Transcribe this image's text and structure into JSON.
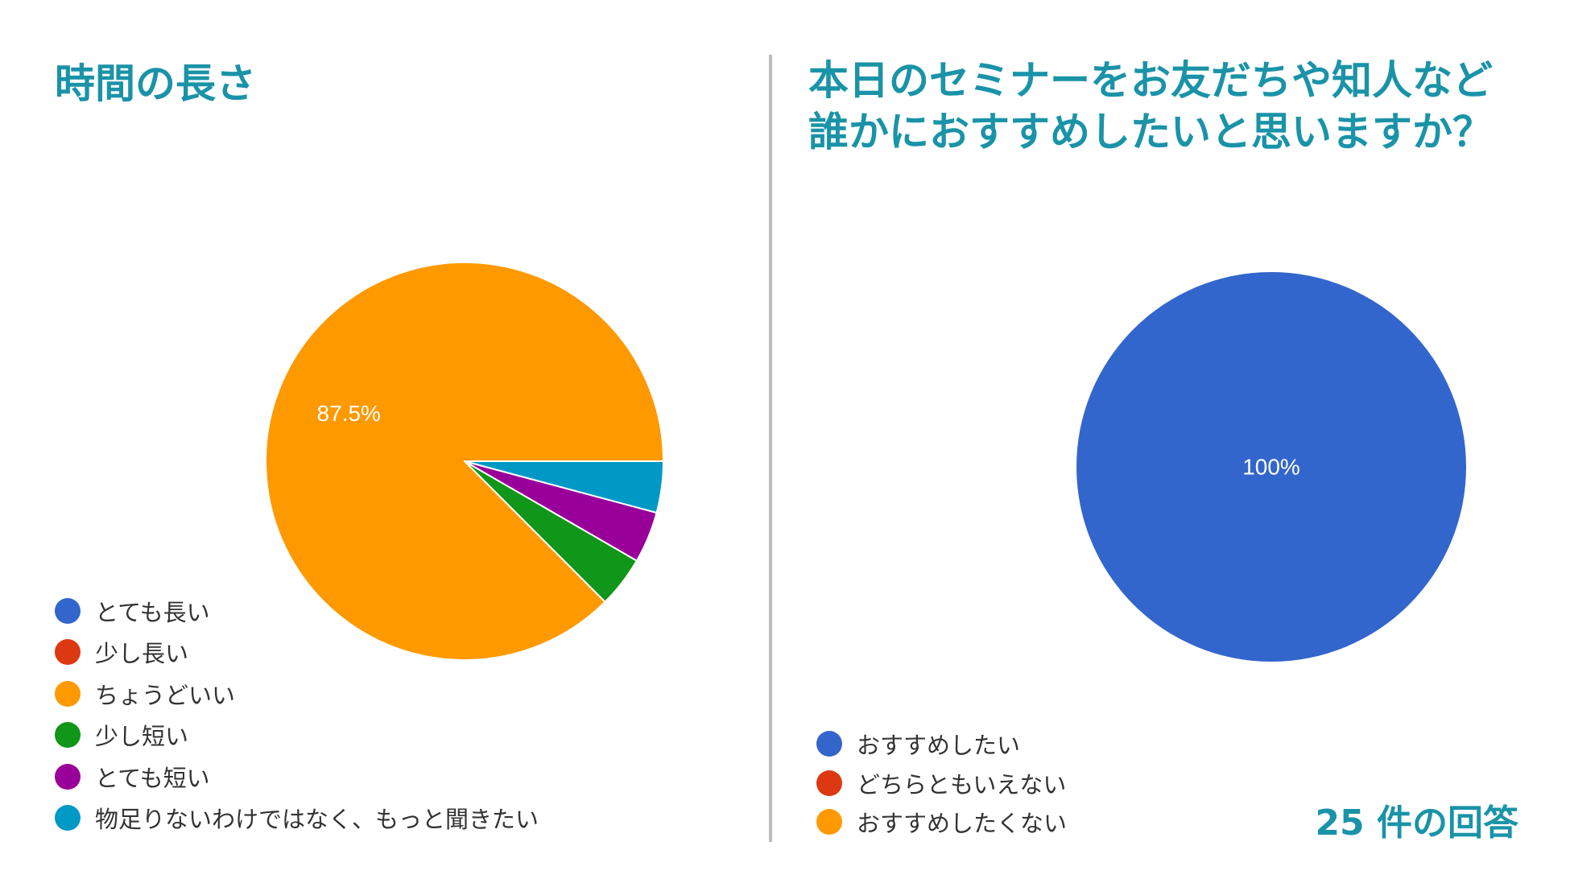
{
  "chart_data": [
    {
      "type": "pie",
      "title": "時間の長さ",
      "categories": [
        "とても長い",
        "少し長い",
        "ちょうどいい",
        "少し短い",
        "とても短い",
        "物足りないわけではなく、もっと聞きたい"
      ],
      "values": [
        0,
        0,
        87.5,
        4.17,
        4.17,
        4.17
      ],
      "colors": [
        "#3366cc",
        "#dc3912",
        "#ff9900",
        "#109618",
        "#990099",
        "#0099c6"
      ],
      "labels": [
        "",
        "",
        "87.5%",
        "",
        "",
        ""
      ],
      "legend_position": "bottom-left"
    },
    {
      "type": "pie",
      "title": "本日のセミナーをお友だちや知人など\n誰かにおすすめしたいと思いますか？",
      "title_lines": [
        "本日のセミナーをお友だちや知人など",
        "誰かにおすすめしたいと思いますか？"
      ],
      "categories": [
        "おすすめしたい",
        "どちらともいえない",
        "おすすめしたくない"
      ],
      "values": [
        100,
        0,
        0
      ],
      "colors": [
        "#3366cc",
        "#dc3912",
        "#ff9900"
      ],
      "labels": [
        "100%",
        "",
        ""
      ],
      "legend_position": "bottom-left"
    }
  ],
  "response_count": "25 件の回答"
}
